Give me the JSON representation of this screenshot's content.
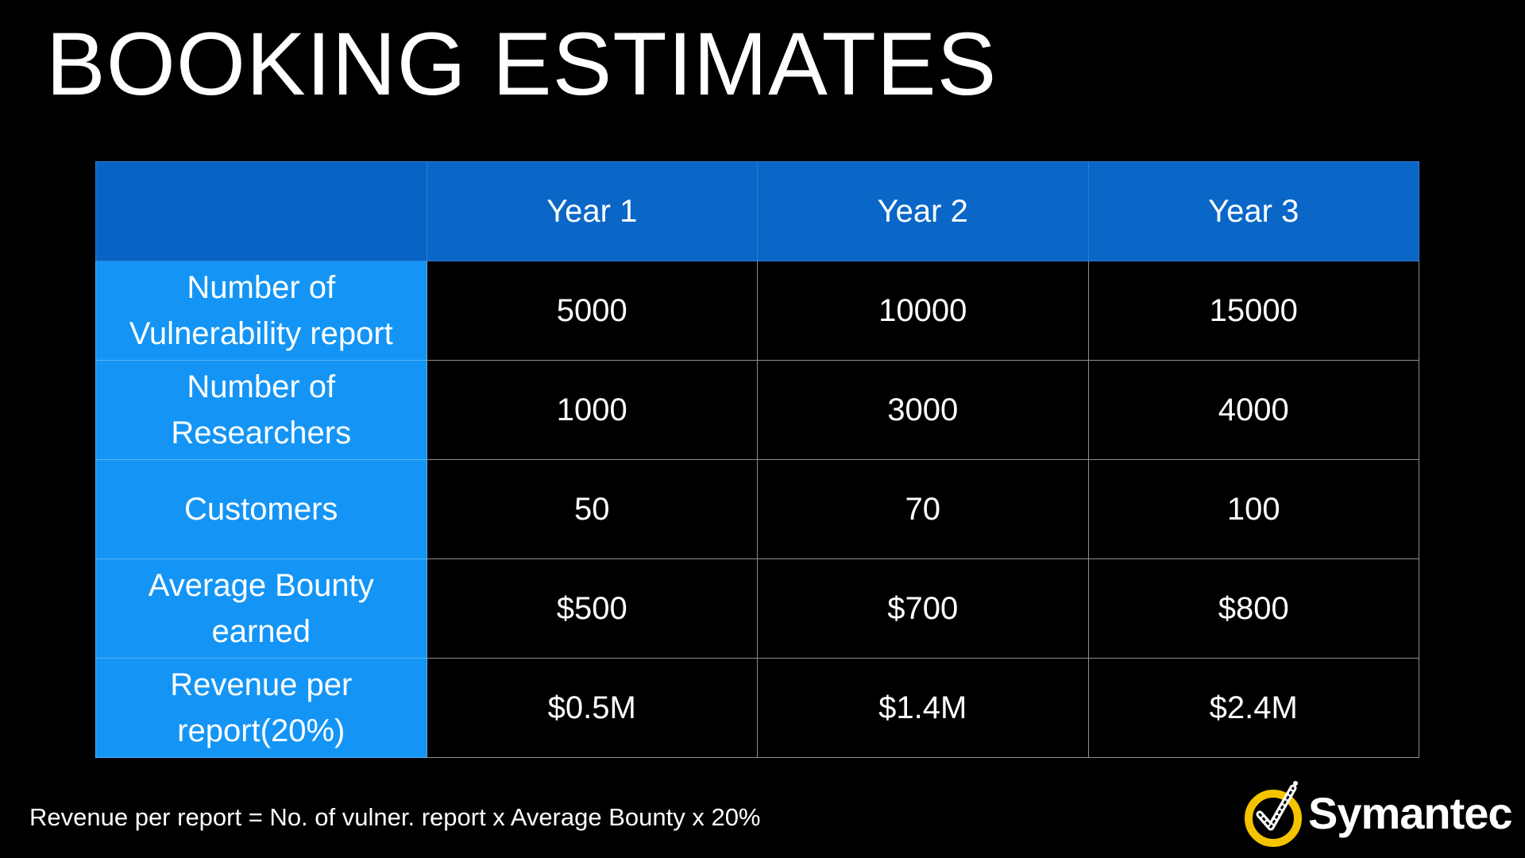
{
  "slide": {
    "title": "BOOKING ESTIMATES",
    "footnote": "Revenue per report = No. of vulner. report x Average Bounty x 20%"
  },
  "table": {
    "corner_label": "",
    "columns": [
      "Year 1",
      "Year 2",
      "Year 3"
    ],
    "rows": [
      {
        "label": "Number of Vulnerability report",
        "values": [
          "5000",
          "10000",
          "15000"
        ]
      },
      {
        "label": "Number of Researchers",
        "values": [
          "1000",
          "3000",
          "4000"
        ]
      },
      {
        "label": "Customers",
        "values": [
          "50",
          "70",
          "100"
        ]
      },
      {
        "label": "Average Bounty earned",
        "values": [
          "$500",
          "$700",
          "$800"
        ]
      },
      {
        "label": "Revenue per report(20%)",
        "values": [
          "$0.5M",
          "$1.4M",
          "$2.4M"
        ]
      }
    ]
  },
  "brand": {
    "name": "Symantec",
    "logo_icon": "checkmark-circle-icon",
    "accent_color": "#f5c400"
  },
  "colors": {
    "background": "#000000",
    "header_blue": "#0a67c7",
    "row_label_blue": "#1495f5",
    "text": "#ffffff"
  }
}
